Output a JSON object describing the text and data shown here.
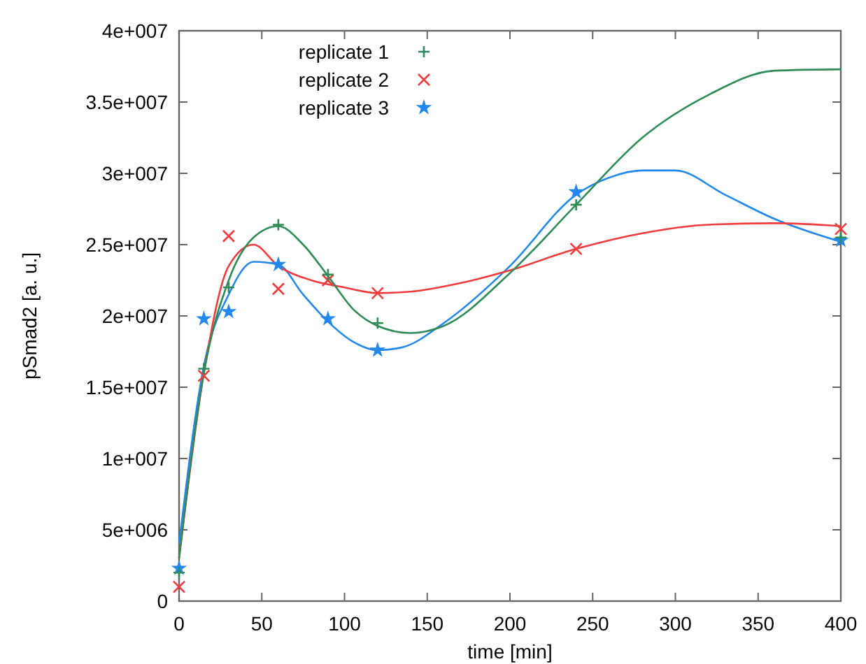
{
  "chart_data": {
    "type": "scatter",
    "xlabel": "time [min]",
    "ylabel": "pSmad2 [a. u.]",
    "xlim": [
      0,
      400
    ],
    "xticks": [
      0,
      50,
      100,
      150,
      200,
      250,
      300,
      350,
      400
    ],
    "ylim": [
      0,
      40000000
    ],
    "yticks": [
      0,
      {
        "value": 5000000,
        "label": "5e+006"
      },
      {
        "value": 10000000,
        "label": "1e+007"
      },
      {
        "value": 15000000,
        "label": "1.5e+007"
      },
      {
        "value": 20000000,
        "label": "2e+007"
      },
      {
        "value": 25000000,
        "label": "2.5e+007"
      },
      {
        "value": 30000000,
        "label": "3e+007"
      },
      {
        "value": 35000000,
        "label": "3.5e+007"
      },
      {
        "value": 40000000,
        "label": "4e+007"
      }
    ],
    "grid": false,
    "legend": "top left",
    "series": [
      {
        "name": "replicate 1",
        "marker": "plus",
        "color": "#2e8b57",
        "x": [
          0,
          15,
          30,
          60,
          90,
          120,
          240,
          400
        ],
        "values": [
          2000000,
          16300000,
          22000000,
          26400000,
          22900000,
          19500000,
          27800000,
          25500000
        ]
      },
      {
        "name": "replicate 2",
        "marker": "cross",
        "color": "#f03c3c",
        "x": [
          0,
          15,
          30,
          60,
          90,
          120,
          240,
          400
        ],
        "values": [
          1000000,
          15800000,
          25600000,
          21900000,
          22500000,
          21600000,
          24700000,
          26100000
        ]
      },
      {
        "name": "replicate 3",
        "marker": "star",
        "color": "#2288ee",
        "x": [
          0,
          15,
          30,
          60,
          90,
          120,
          240,
          400
        ],
        "values": [
          2300000,
          19800000,
          20300000,
          23600000,
          19800000,
          17600000,
          28700000,
          25300000
        ]
      },
      {
        "type": "line",
        "marker": "none",
        "color": "#2e8b57",
        "x": [
          0,
          15,
          30,
          45,
          60,
          75,
          90,
          105,
          120,
          140,
          160,
          200,
          240,
          280,
          320,
          360,
          400
        ],
        "values": [
          3000000,
          16000000,
          22500000,
          25500000,
          26300000,
          25000000,
          22800000,
          20500000,
          19300000,
          18800000,
          19300000,
          23000000,
          27800000,
          32500000,
          35500000,
          37200000,
          37300000
        ]
      },
      {
        "type": "line",
        "marker": "none",
        "color": "#f03c3c",
        "x": [
          0,
          15,
          30,
          45,
          60,
          80,
          100,
          120,
          140,
          170,
          200,
          240,
          280,
          320,
          360,
          400
        ],
        "values": [
          3000000,
          16000000,
          23500000,
          25000000,
          23500000,
          22500000,
          22000000,
          21600000,
          21700000,
          22300000,
          23200000,
          24700000,
          25800000,
          26400000,
          26500000,
          26300000
        ]
      },
      {
        "type": "line",
        "marker": "none",
        "color": "#2288ee",
        "x": [
          0,
          15,
          30,
          45,
          60,
          75,
          90,
          105,
          120,
          135,
          160,
          200,
          240,
          260,
          280,
          300,
          330,
          360,
          400
        ],
        "values": [
          4000000,
          16500000,
          21500000,
          23800000,
          23600000,
          21500000,
          19600000,
          18200000,
          17600000,
          17800000,
          19500000,
          23500000,
          28500000,
          29700000,
          30200000,
          30200000,
          28500000,
          26800000,
          25200000
        ]
      }
    ]
  }
}
